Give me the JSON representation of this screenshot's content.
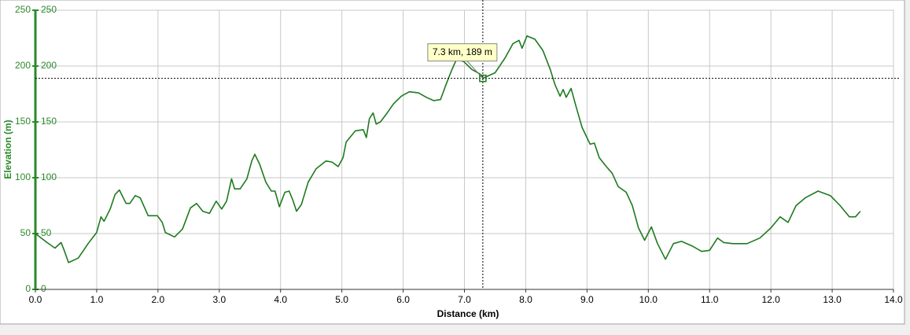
{
  "chart_data": {
    "type": "line",
    "x_label": "Distance (km)",
    "y_label": "Elevation (m)",
    "xlim": [
      0,
      14
    ],
    "ylim": [
      0,
      250
    ],
    "xticks": [
      {
        "value": 0,
        "label": "0.0"
      },
      {
        "value": 1,
        "label": "1.0"
      },
      {
        "value": 2,
        "label": "2.0"
      },
      {
        "value": 3,
        "label": "3.0"
      },
      {
        "value": 4,
        "label": "4.0"
      },
      {
        "value": 5,
        "label": "5.0"
      },
      {
        "value": 6,
        "label": "6.0"
      },
      {
        "value": 7,
        "label": "7.0"
      },
      {
        "value": 8,
        "label": "8.0"
      },
      {
        "value": 9,
        "label": "9.0"
      },
      {
        "value": 10,
        "label": "10.0"
      },
      {
        "value": 11,
        "label": "11.0"
      },
      {
        "value": 12,
        "label": "12.0"
      },
      {
        "value": 13,
        "label": "13.0"
      },
      {
        "value": 14,
        "label": "14.0"
      }
    ],
    "yticks": [
      0,
      50,
      100,
      150,
      200,
      250
    ],
    "grid": true,
    "series": [
      {
        "name": "Elevation",
        "color": "#1e7a1e",
        "x": [
          0.0,
          0.19,
          0.32,
          0.42,
          0.47,
          0.54,
          0.7,
          0.86,
          1.0,
          1.07,
          1.12,
          1.22,
          1.3,
          1.37,
          1.48,
          1.54,
          1.63,
          1.71,
          1.84,
          1.99,
          2.07,
          2.12,
          2.27,
          2.4,
          2.53,
          2.63,
          2.73,
          2.84,
          2.95,
          3.04,
          3.12,
          3.2,
          3.25,
          3.34,
          3.45,
          3.53,
          3.58,
          3.66,
          3.76,
          3.85,
          3.91,
          3.98,
          4.07,
          4.14,
          4.2,
          4.26,
          4.34,
          4.45,
          4.58,
          4.74,
          4.84,
          4.94,
          5.02,
          5.07,
          5.22,
          5.35,
          5.4,
          5.45,
          5.51,
          5.56,
          5.63,
          5.74,
          5.84,
          5.97,
          6.1,
          6.25,
          6.38,
          6.5,
          6.61,
          6.69,
          6.79,
          6.87,
          6.99,
          7.12,
          7.25,
          7.3,
          7.5,
          7.66,
          7.79,
          7.89,
          7.94,
          8.02,
          8.15,
          8.28,
          8.4,
          8.48,
          8.56,
          8.61,
          8.66,
          8.74,
          8.82,
          8.92,
          9.05,
          9.12,
          9.2,
          9.3,
          9.41,
          9.51,
          9.64,
          9.74,
          9.84,
          9.94,
          10.05,
          10.15,
          10.28,
          10.41,
          10.54,
          10.71,
          10.87,
          11.0,
          11.13,
          11.23,
          11.38,
          11.61,
          11.82,
          12.0,
          12.15,
          12.28,
          12.41,
          12.56,
          12.77,
          12.97,
          13.13,
          13.28,
          13.38,
          13.46
        ],
        "values": [
          50,
          42,
          37,
          42,
          35,
          24,
          28,
          41,
          51,
          65,
          61,
          72,
          85,
          89,
          77,
          77,
          84,
          82,
          66,
          66,
          60,
          51,
          47,
          54,
          73,
          77,
          70,
          68,
          79,
          72,
          79,
          99,
          90,
          90,
          99,
          115,
          121,
          112,
          96,
          88,
          88,
          74,
          87,
          88,
          80,
          70,
          76,
          96,
          108,
          115,
          114,
          110,
          118,
          132,
          142,
          143,
          136,
          153,
          158,
          148,
          150,
          158,
          166,
          173,
          177,
          176,
          172,
          169,
          170,
          182,
          196,
          206,
          204,
          197,
          193,
          189,
          194,
          207,
          220,
          223,
          216,
          227,
          224,
          214,
          197,
          183,
          173,
          179,
          172,
          180,
          164,
          145,
          130,
          131,
          118,
          111,
          104,
          92,
          87,
          75,
          55,
          44,
          56,
          41,
          27,
          41,
          43,
          39,
          34,
          35,
          46,
          42,
          41,
          41,
          46,
          55,
          65,
          60,
          75,
          82,
          88,
          84,
          75,
          65,
          65,
          70
        ]
      }
    ],
    "annotation": {
      "label": "7.3 km, 189 m",
      "x": 7.3,
      "y": 189
    }
  }
}
